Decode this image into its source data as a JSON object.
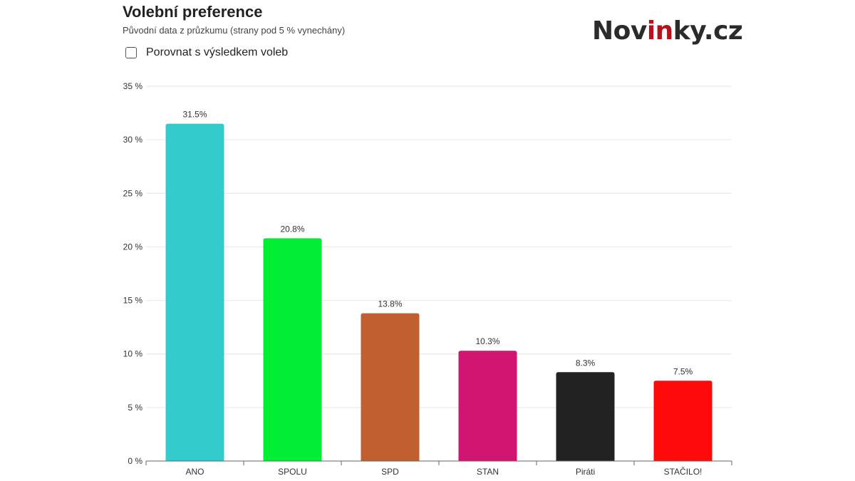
{
  "header": {
    "title": "Volební preference",
    "subtitle": "Původní data z průzkumu (strany pod 5 % vynechány)",
    "compare_label": "Porovnat s výsledkem voleb",
    "compare_checked": false
  },
  "logo": {
    "part1": "Nov",
    "part2": "in",
    "part3": "ky.cz",
    "dark_color": "#2b2b2b",
    "accent_color": "#b5121b"
  },
  "chart_data": {
    "type": "bar",
    "title": "Volební preference",
    "subtitle": "Původní data z průzkumu (strany pod 5 % vynechány)",
    "categories": [
      "ANO",
      "SPOLU",
      "SPD",
      "STAN",
      "Piráti",
      "STAČILO!"
    ],
    "values": [
      31.5,
      20.8,
      13.8,
      10.3,
      8.3,
      7.5
    ],
    "data_labels": [
      "31.5%",
      "20.8%",
      "13.8%",
      "10.3%",
      "8.3%",
      "7.5%"
    ],
    "colors": [
      "#33cccc",
      "#00ee33",
      "#c05f30",
      "#d01470",
      "#222222",
      "#ff0a0a"
    ],
    "ylim": [
      0,
      35
    ],
    "yticks": [
      0,
      5,
      10,
      15,
      20,
      25,
      30,
      35
    ],
    "ytick_labels": [
      "0 %",
      "5 %",
      "10 %",
      "15 %",
      "20 %",
      "25 %",
      "30 %",
      "35 %"
    ],
    "grid": true,
    "legend": false
  }
}
